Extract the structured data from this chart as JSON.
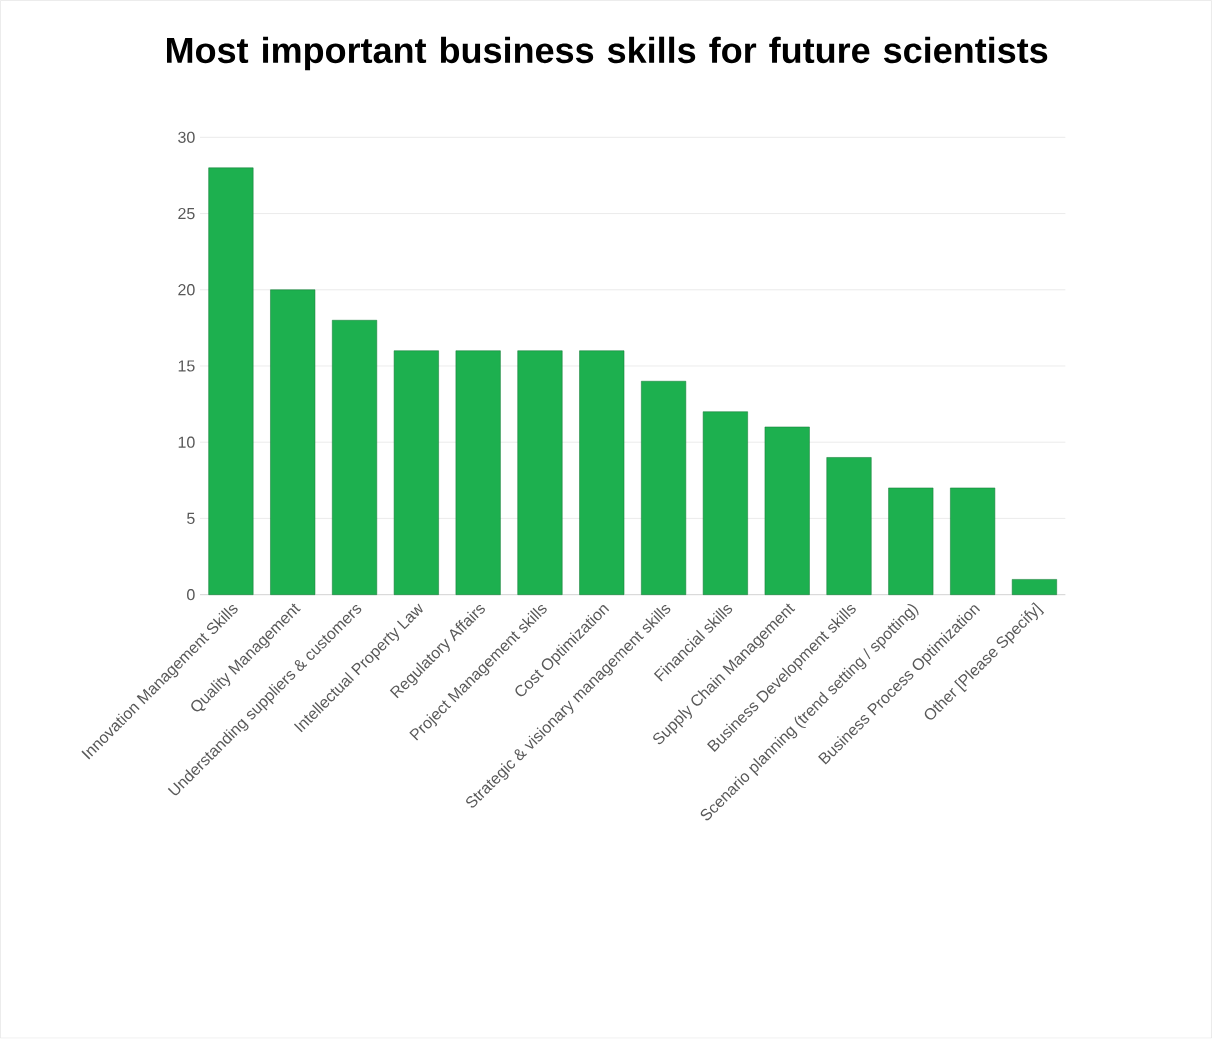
{
  "chart_data": {
    "type": "bar",
    "title": "Most important business skills for future scientists",
    "categories": [
      "Innovation Management Skills",
      "Quality Management",
      "Understanding suppliers & customers",
      "Intellectual Property Law",
      "Regulatory Affairs",
      "Project Management skills",
      "Cost Optimization",
      "Strategic & visionary management skills",
      "Financial skills",
      "Supply Chain Management",
      "Business Development skills",
      "Scenario planning (trend setting / spotting)",
      "Business Process Optimization",
      "Other [Please Specify]"
    ],
    "values": [
      28,
      20,
      18,
      16,
      16,
      16,
      16,
      14,
      12,
      11,
      9,
      7,
      7,
      1
    ],
    "color": "#1db04f",
    "ylim": [
      0,
      30
    ],
    "yticks": [
      0,
      5,
      10,
      15,
      20,
      25,
      30
    ],
    "grid": "y"
  }
}
